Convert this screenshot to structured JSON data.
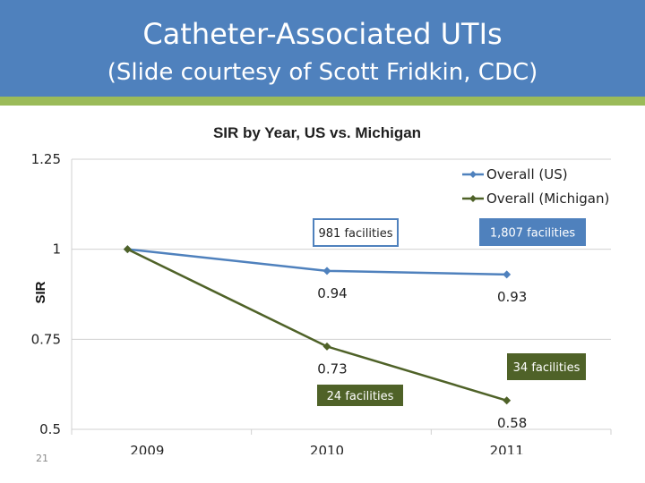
{
  "slide": {
    "title": "Catheter-Associated UTIs",
    "subtitle": "(Slide courtesy of Scott Fridkin, CDC)",
    "slide_number": "21",
    "header_color": "#4f81bd",
    "stripe_color": "#9bbb59"
  },
  "chart_data": {
    "type": "line",
    "title": "SIR by Year, US vs. Michigan",
    "xlabel": "",
    "ylabel": "SIR",
    "categories": [
      "2009",
      "2010",
      "2011"
    ],
    "y_ticks": [
      "1.25",
      "1",
      "0.75",
      "0.5"
    ],
    "ylim": [
      0.5,
      1.25
    ],
    "grid": true,
    "legend_position": "top-right",
    "series": [
      {
        "name": "Overall (US)",
        "values": [
          1,
          0.94,
          0.93
        ],
        "labels": [
          "",
          "0.94",
          "0.93"
        ],
        "color": "#4f81bd"
      },
      {
        "name": "Overall (Michigan)",
        "values": [
          1,
          0.73,
          0.58
        ],
        "labels": [
          "",
          "0.73",
          "0.58"
        ],
        "color": "#4f6228"
      }
    ],
    "annotations": [
      {
        "text": "981 facilities",
        "series": 0,
        "category": 1,
        "style": "outlined",
        "color": "#4f81bd"
      },
      {
        "text": "1,807 facilities",
        "series": 0,
        "category": 2,
        "style": "filled",
        "color": "#4f81bd"
      },
      {
        "text": "24 facilities",
        "series": 1,
        "category": 1,
        "style": "filled",
        "color": "#4f6228"
      },
      {
        "text": "34 facilities",
        "series": 1,
        "category": 2,
        "style": "filled",
        "color": "#4f6228"
      }
    ]
  }
}
